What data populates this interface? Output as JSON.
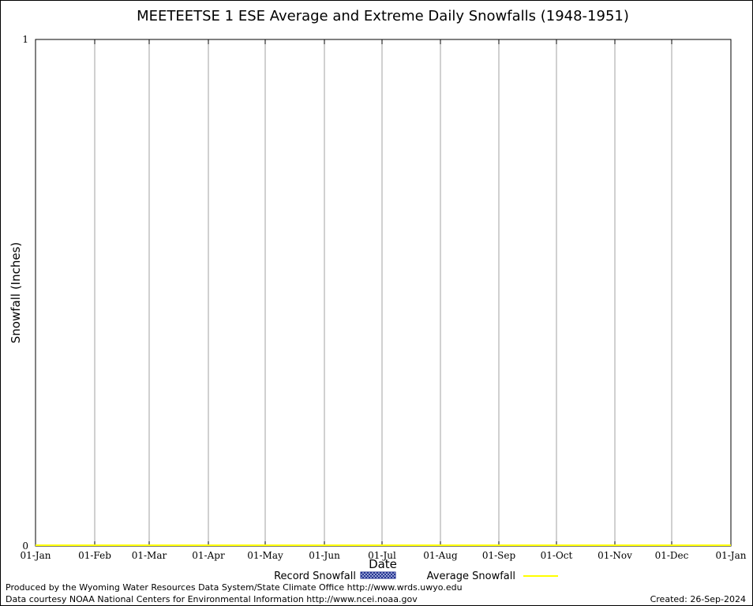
{
  "chart_data": {
    "type": "area",
    "title": "MEETEETSE 1 ESE Average and Extreme Daily Snowfalls (1948-1951)",
    "xlabel": "Date",
    "ylabel": "Snowfall (Inches)",
    "ylim": [
      0,
      1
    ],
    "y_ticks": [
      "0",
      "1"
    ],
    "x_ticks": [
      "01-Jan",
      "01-Feb",
      "01-Mar",
      "01-Apr",
      "01-May",
      "01-Jun",
      "01-Jul",
      "01-Aug",
      "01-Sep",
      "01-Oct",
      "01-Nov",
      "01-Dec",
      "01-Jan"
    ],
    "grid": "vertical",
    "legend_position": "bottom",
    "series": [
      {
        "name": "Record Snowfall",
        "style": "hatched-bar",
        "color": "#1a2a8c",
        "values": [
          0,
          0,
          0,
          0,
          0,
          0,
          0,
          0,
          0,
          0,
          0,
          0,
          0
        ]
      },
      {
        "name": "Average Snowfall",
        "style": "line",
        "color": "#ffff00",
        "values": [
          0,
          0,
          0,
          0,
          0,
          0,
          0,
          0,
          0,
          0,
          0,
          0,
          0
        ]
      }
    ]
  },
  "footer": {
    "produced_by": "Produced by the Wyoming Water Resources Data System/State Climate Office http://www.wrds.uwyo.edu",
    "data_courtesy": "Data courtesy NOAA National Centers for Environmental Information http://www.ncei.noaa.gov",
    "created": "Created: 26-Sep-2024"
  }
}
